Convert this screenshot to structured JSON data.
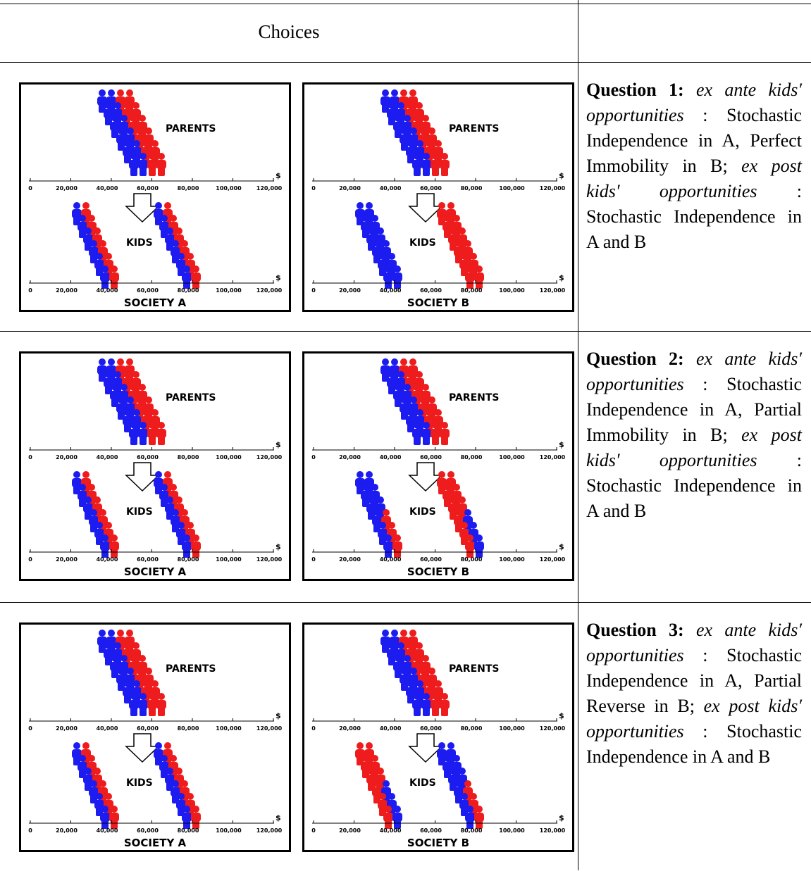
{
  "header": {
    "choices": "Choices"
  },
  "panel_text": {
    "parents": "PARENTS",
    "kids": "KIDS",
    "currency": "$",
    "axis_ticks": [
      "0",
      "20,000",
      "40,000",
      "60,000",
      "80,000",
      "100,000",
      "120,000"
    ]
  },
  "rows": [
    {
      "society_a": "SOCIETY A",
      "society_b": "SOCIETY B",
      "question": {
        "label": "Question 1:",
        "ex_ante": "ex ante",
        "kids_1": "kids′ opportunities",
        "middle": ": Stochastic Independence in A, Perfect Immobility in B;",
        "ex_post": "ex post",
        "kids_2": "kids′ opportunities",
        "tail": ": Stochastic Independence in A and B"
      }
    },
    {
      "society_a": "SOCIETY A",
      "society_b": "SOCIETY B",
      "question": {
        "label": "Question 2:",
        "ex_ante": "ex ante",
        "kids_1": "kids′ opportunities",
        "middle": ": Stochastic Independence in A, Partial Immobility in B;",
        "ex_post": "ex post",
        "kids_2": "kids′ opportunities",
        "tail": ": Stochastic Independence in A and B"
      }
    },
    {
      "society_a": "SOCIETY A",
      "society_b": "SOCIETY B",
      "question": {
        "label": "Question 3:",
        "ex_ante": "ex ante",
        "kids_1": "kids′ opportunities",
        "middle": ": Stochastic Independence in A, Partial Reverse in B;",
        "ex_post": "ex post",
        "kids_2": "kids′ opportunities",
        "tail": ": Stochastic Independence in A and B"
      }
    }
  ]
}
